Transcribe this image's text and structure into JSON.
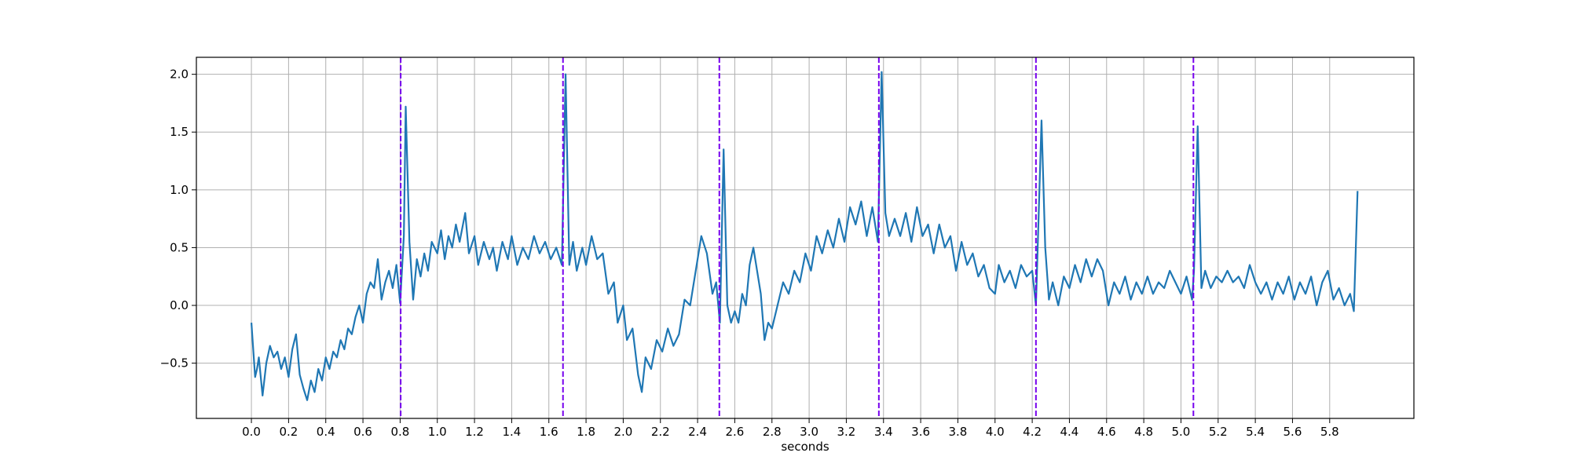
{
  "chart_data": {
    "type": "line",
    "xlabel": "seconds",
    "color": "#1f77b4",
    "vline_color": "#7700ee",
    "vlines": [
      0.803,
      1.676,
      2.517,
      3.375,
      4.22,
      5.067
    ],
    "grid": true,
    "xlim": [
      -0.296,
      6.253
    ],
    "ylim": [
      -0.978,
      2.147
    ],
    "xticks": [
      {
        "value": 0,
        "label": "0.0"
      },
      {
        "value": 0.2,
        "label": "0.2"
      },
      {
        "value": 0.4,
        "label": "0.4"
      },
      {
        "value": 0.6,
        "label": "0.6"
      },
      {
        "value": 0.8,
        "label": "0.8"
      },
      {
        "value": 1.0,
        "label": "1.0"
      },
      {
        "value": 1.2,
        "label": "1.2"
      },
      {
        "value": 1.4,
        "label": "1.4"
      },
      {
        "value": 1.6,
        "label": "1.6"
      },
      {
        "value": 1.8,
        "label": "1.8"
      },
      {
        "value": 2.0,
        "label": "2.0"
      },
      {
        "value": 2.2,
        "label": "2.2"
      },
      {
        "value": 2.4,
        "label": "2.4"
      },
      {
        "value": 2.6,
        "label": "2.6"
      },
      {
        "value": 2.8,
        "label": "2.8"
      },
      {
        "value": 3.0,
        "label": "3.0"
      },
      {
        "value": 3.2,
        "label": "3.2"
      },
      {
        "value": 3.4,
        "label": "3.4"
      },
      {
        "value": 3.6,
        "label": "3.6"
      },
      {
        "value": 3.8,
        "label": "3.8"
      },
      {
        "value": 4.0,
        "label": "4.0"
      },
      {
        "value": 4.2,
        "label": "4.2"
      },
      {
        "value": 4.4,
        "label": "4.4"
      },
      {
        "value": 4.6,
        "label": "4.6"
      },
      {
        "value": 4.8,
        "label": "4.8"
      },
      {
        "value": 5.0,
        "label": "5.0"
      },
      {
        "value": 5.2,
        "label": "5.2"
      },
      {
        "value": 5.4,
        "label": "5.4"
      },
      {
        "value": 5.6,
        "label": "5.6"
      },
      {
        "value": 5.8,
        "label": "5.8"
      }
    ],
    "yticks": [
      {
        "value": -0.5,
        "label": "−0.5"
      },
      {
        "value": 0,
        "label": "0.0"
      },
      {
        "value": 0.5,
        "label": "0.5"
      },
      {
        "value": 1.0,
        "label": "1.0"
      },
      {
        "value": 1.5,
        "label": "1.5"
      },
      {
        "value": 2.0,
        "label": "2.0"
      }
    ],
    "x": [
      0.0,
      0.02,
      0.03,
      0.04,
      0.06,
      0.08,
      0.1,
      0.12,
      0.14,
      0.16,
      0.18,
      0.2,
      0.22,
      0.24,
      0.26,
      0.28,
      0.3,
      0.32,
      0.34,
      0.36,
      0.38,
      0.4,
      0.42,
      0.44,
      0.46,
      0.48,
      0.5,
      0.52,
      0.54,
      0.56,
      0.58,
      0.6,
      0.62,
      0.64,
      0.66,
      0.68,
      0.7,
      0.72,
      0.74,
      0.76,
      0.78,
      0.8,
      0.82,
      0.83,
      0.85,
      0.87,
      0.89,
      0.91,
      0.93,
      0.95,
      0.97,
      1.0,
      1.02,
      1.04,
      1.06,
      1.08,
      1.1,
      1.12,
      1.15,
      1.17,
      1.2,
      1.22,
      1.25,
      1.28,
      1.3,
      1.32,
      1.35,
      1.38,
      1.4,
      1.43,
      1.46,
      1.49,
      1.52,
      1.55,
      1.58,
      1.61,
      1.64,
      1.67,
      1.69,
      1.71,
      1.73,
      1.75,
      1.78,
      1.8,
      1.83,
      1.86,
      1.89,
      1.92,
      1.95,
      1.97,
      2.0,
      2.02,
      2.05,
      2.08,
      2.1,
      2.12,
      2.15,
      2.18,
      2.21,
      2.24,
      2.27,
      2.3,
      2.33,
      2.36,
      2.39,
      2.42,
      2.45,
      2.48,
      2.5,
      2.52,
      2.54,
      2.56,
      2.58,
      2.6,
      2.62,
      2.64,
      2.66,
      2.68,
      2.7,
      2.72,
      2.74,
      2.76,
      2.78,
      2.8,
      2.83,
      2.86,
      2.89,
      2.92,
      2.95,
      2.98,
      3.01,
      3.04,
      3.07,
      3.1,
      3.13,
      3.16,
      3.19,
      3.22,
      3.25,
      3.28,
      3.31,
      3.34,
      3.37,
      3.39,
      3.41,
      3.43,
      3.46,
      3.49,
      3.52,
      3.55,
      3.58,
      3.61,
      3.64,
      3.67,
      3.7,
      3.73,
      3.76,
      3.79,
      3.82,
      3.85,
      3.88,
      3.91,
      3.94,
      3.97,
      4.0,
      4.02,
      4.05,
      4.08,
      4.11,
      4.14,
      4.17,
      4.2,
      4.22,
      4.25,
      4.27,
      4.29,
      4.31,
      4.34,
      4.37,
      4.4,
      4.43,
      4.46,
      4.49,
      4.52,
      4.55,
      4.58,
      4.61,
      4.64,
      4.67,
      4.7,
      4.73,
      4.76,
      4.79,
      4.82,
      4.85,
      4.88,
      4.91,
      4.94,
      4.97,
      5.0,
      5.03,
      5.06,
      5.07,
      5.09,
      5.11,
      5.13,
      5.16,
      5.19,
      5.22,
      5.25,
      5.28,
      5.31,
      5.34,
      5.37,
      5.4,
      5.43,
      5.46,
      5.49,
      5.52,
      5.55,
      5.58,
      5.61,
      5.64,
      5.67,
      5.7,
      5.73,
      5.76,
      5.79,
      5.82,
      5.85,
      5.88,
      5.91,
      5.93,
      5.95
    ],
    "values": [
      -0.15,
      -0.62,
      -0.55,
      -0.45,
      -0.78,
      -0.5,
      -0.35,
      -0.45,
      -0.4,
      -0.55,
      -0.45,
      -0.62,
      -0.38,
      -0.25,
      -0.6,
      -0.72,
      -0.82,
      -0.65,
      -0.75,
      -0.55,
      -0.65,
      -0.45,
      -0.55,
      -0.4,
      -0.45,
      -0.3,
      -0.38,
      -0.2,
      -0.25,
      -0.1,
      0.0,
      -0.15,
      0.1,
      0.2,
      0.15,
      0.4,
      0.05,
      0.2,
      0.3,
      0.15,
      0.35,
      0.02,
      0.6,
      1.72,
      0.55,
      0.05,
      0.4,
      0.25,
      0.45,
      0.3,
      0.55,
      0.45,
      0.65,
      0.4,
      0.6,
      0.5,
      0.7,
      0.55,
      0.8,
      0.45,
      0.6,
      0.35,
      0.55,
      0.4,
      0.5,
      0.3,
      0.55,
      0.4,
      0.6,
      0.35,
      0.5,
      0.4,
      0.6,
      0.45,
      0.55,
      0.4,
      0.5,
      0.35,
      2.0,
      0.35,
      0.55,
      0.3,
      0.5,
      0.35,
      0.6,
      0.4,
      0.45,
      0.1,
      0.2,
      -0.15,
      0.0,
      -0.3,
      -0.2,
      -0.6,
      -0.75,
      -0.45,
      -0.55,
      -0.3,
      -0.4,
      -0.2,
      -0.35,
      -0.25,
      0.05,
      0.0,
      0.3,
      0.6,
      0.45,
      0.1,
      0.2,
      -0.15,
      1.35,
      0.0,
      -0.15,
      -0.05,
      -0.15,
      0.1,
      0.0,
      0.35,
      0.5,
      0.3,
      0.1,
      -0.3,
      -0.15,
      -0.2,
      0.0,
      0.2,
      0.1,
      0.3,
      0.2,
      0.45,
      0.3,
      0.6,
      0.45,
      0.65,
      0.5,
      0.75,
      0.55,
      0.85,
      0.7,
      0.9,
      0.6,
      0.85,
      0.55,
      2.02,
      0.8,
      0.6,
      0.75,
      0.6,
      0.8,
      0.55,
      0.85,
      0.6,
      0.7,
      0.45,
      0.7,
      0.5,
      0.6,
      0.3,
      0.55,
      0.35,
      0.45,
      0.25,
      0.35,
      0.15,
      0.1,
      0.35,
      0.2,
      0.3,
      0.15,
      0.35,
      0.25,
      0.3,
      0.0,
      1.6,
      0.5,
      0.05,
      0.2,
      0.0,
      0.25,
      0.15,
      0.35,
      0.2,
      0.4,
      0.25,
      0.4,
      0.3,
      0.0,
      0.2,
      0.1,
      0.25,
      0.05,
      0.2,
      0.1,
      0.25,
      0.1,
      0.2,
      0.15,
      0.3,
      0.2,
      0.1,
      0.25,
      0.05,
      0.3,
      1.55,
      0.15,
      0.3,
      0.15,
      0.25,
      0.2,
      0.3,
      0.2,
      0.25,
      0.15,
      0.35,
      0.2,
      0.1,
      0.2,
      0.05,
      0.2,
      0.1,
      0.25,
      0.05,
      0.2,
      0.1,
      0.25,
      0.0,
      0.2,
      0.3,
      0.05,
      0.15,
      0.0,
      0.1,
      -0.05,
      0.99
    ]
  }
}
